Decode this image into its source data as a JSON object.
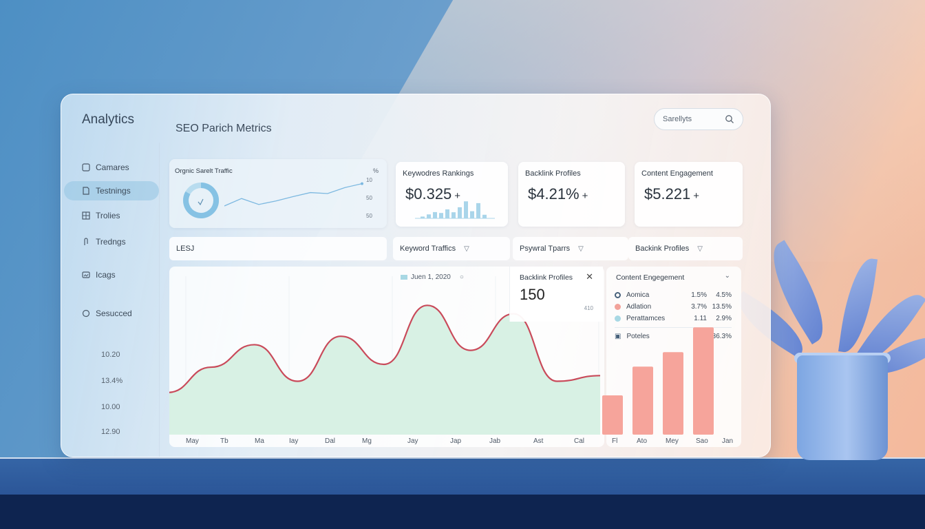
{
  "app": {
    "title": "Analytics",
    "page_title": "SEO Parich Metrics"
  },
  "search": {
    "label": "Sarellyts"
  },
  "sidebar": {
    "items": [
      {
        "label": "Camares",
        "icon": "square-icon"
      },
      {
        "label": "Testnings",
        "icon": "doc-icon",
        "active": true
      },
      {
        "label": "Trolies",
        "icon": "grid-icon"
      },
      {
        "label": "Tredngs",
        "icon": "clip-icon"
      },
      {
        "label": "Icags",
        "icon": "image-icon"
      },
      {
        "label": "Sesucced",
        "icon": "circle-icon"
      }
    ],
    "values": [
      "10.20",
      "13.4%",
      "10.00",
      "12.90"
    ]
  },
  "cards": {
    "organic": {
      "title": "Orgnic Sarelt Traffic",
      "pct_label": "%",
      "axis": [
        "10",
        "50",
        "50"
      ]
    },
    "keywords": {
      "title": "Keywodres Rankings",
      "value": "$0.325",
      "delta": "+"
    },
    "backlink": {
      "title": "Backlink Profiles",
      "value": "$4.21%",
      "delta": "+"
    },
    "content": {
      "title": "Content Engagement",
      "value": "$5.221",
      "delta": "+"
    }
  },
  "tabs": {
    "left": "LESJ",
    "items": [
      {
        "label": "Keyword Traffics"
      },
      {
        "label": "Psywral Tparrs"
      },
      {
        "label": "Backink Profiles"
      }
    ]
  },
  "main_chart": {
    "legend_label": "Juen 1, 2020",
    "popup": {
      "title": "Backlink Profiles",
      "value": "150",
      "sub": "410"
    }
  },
  "engagement": {
    "title": "Content Engegement",
    "rows": [
      {
        "name": "Aomica",
        "v1": "1.5%",
        "v2": "4.5%",
        "color": "#46607a"
      },
      {
        "name": "Adlation",
        "v1": "3.7%",
        "v2": "13.5%",
        "color": "#f2a29a"
      },
      {
        "name": "Perattamces",
        "v1": "1.11",
        "v2": "2.9%",
        "color": "#a8d8e4"
      }
    ],
    "extra": {
      "name": "Poteles",
      "v": "36.3%"
    }
  },
  "chart_data": [
    {
      "type": "area",
      "title": "",
      "categories": [
        "May",
        "Tb",
        "Ma",
        "Iay",
        "Dal",
        "Mg",
        "Jay",
        "Jap",
        "Jab",
        "Ast",
        "Cal"
      ],
      "series": [
        {
          "name": "Traffic",
          "values": [
            30,
            48,
            64,
            38,
            70,
            50,
            92,
            60,
            86,
            38,
            42
          ]
        }
      ],
      "ylim": [
        0,
        100
      ],
      "color_line": "#c94a5a",
      "color_fill": "#d8f1e4"
    },
    {
      "type": "bar",
      "categories": [
        "Fl",
        "Ato",
        "Mey",
        "Sao"
      ],
      "values": [
        30,
        52,
        63,
        82
      ],
      "extra_label": "Jan",
      "ylim": [
        0,
        100
      ],
      "color": "#f6a49b"
    },
    {
      "type": "line",
      "title": "Orgnic Sarelt Traffic",
      "values": [
        25,
        40,
        28,
        35,
        44,
        52,
        50,
        62,
        70
      ],
      "ylim": [
        0,
        100
      ],
      "color": "#7cb8e0"
    },
    {
      "type": "bar",
      "title": "Keywodres Rankings",
      "values": [
        10,
        22,
        35,
        30,
        50,
        34,
        62,
        95,
        40,
        85,
        20
      ],
      "ylim": [
        0,
        100
      ],
      "color": "#a9d5ea"
    }
  ]
}
